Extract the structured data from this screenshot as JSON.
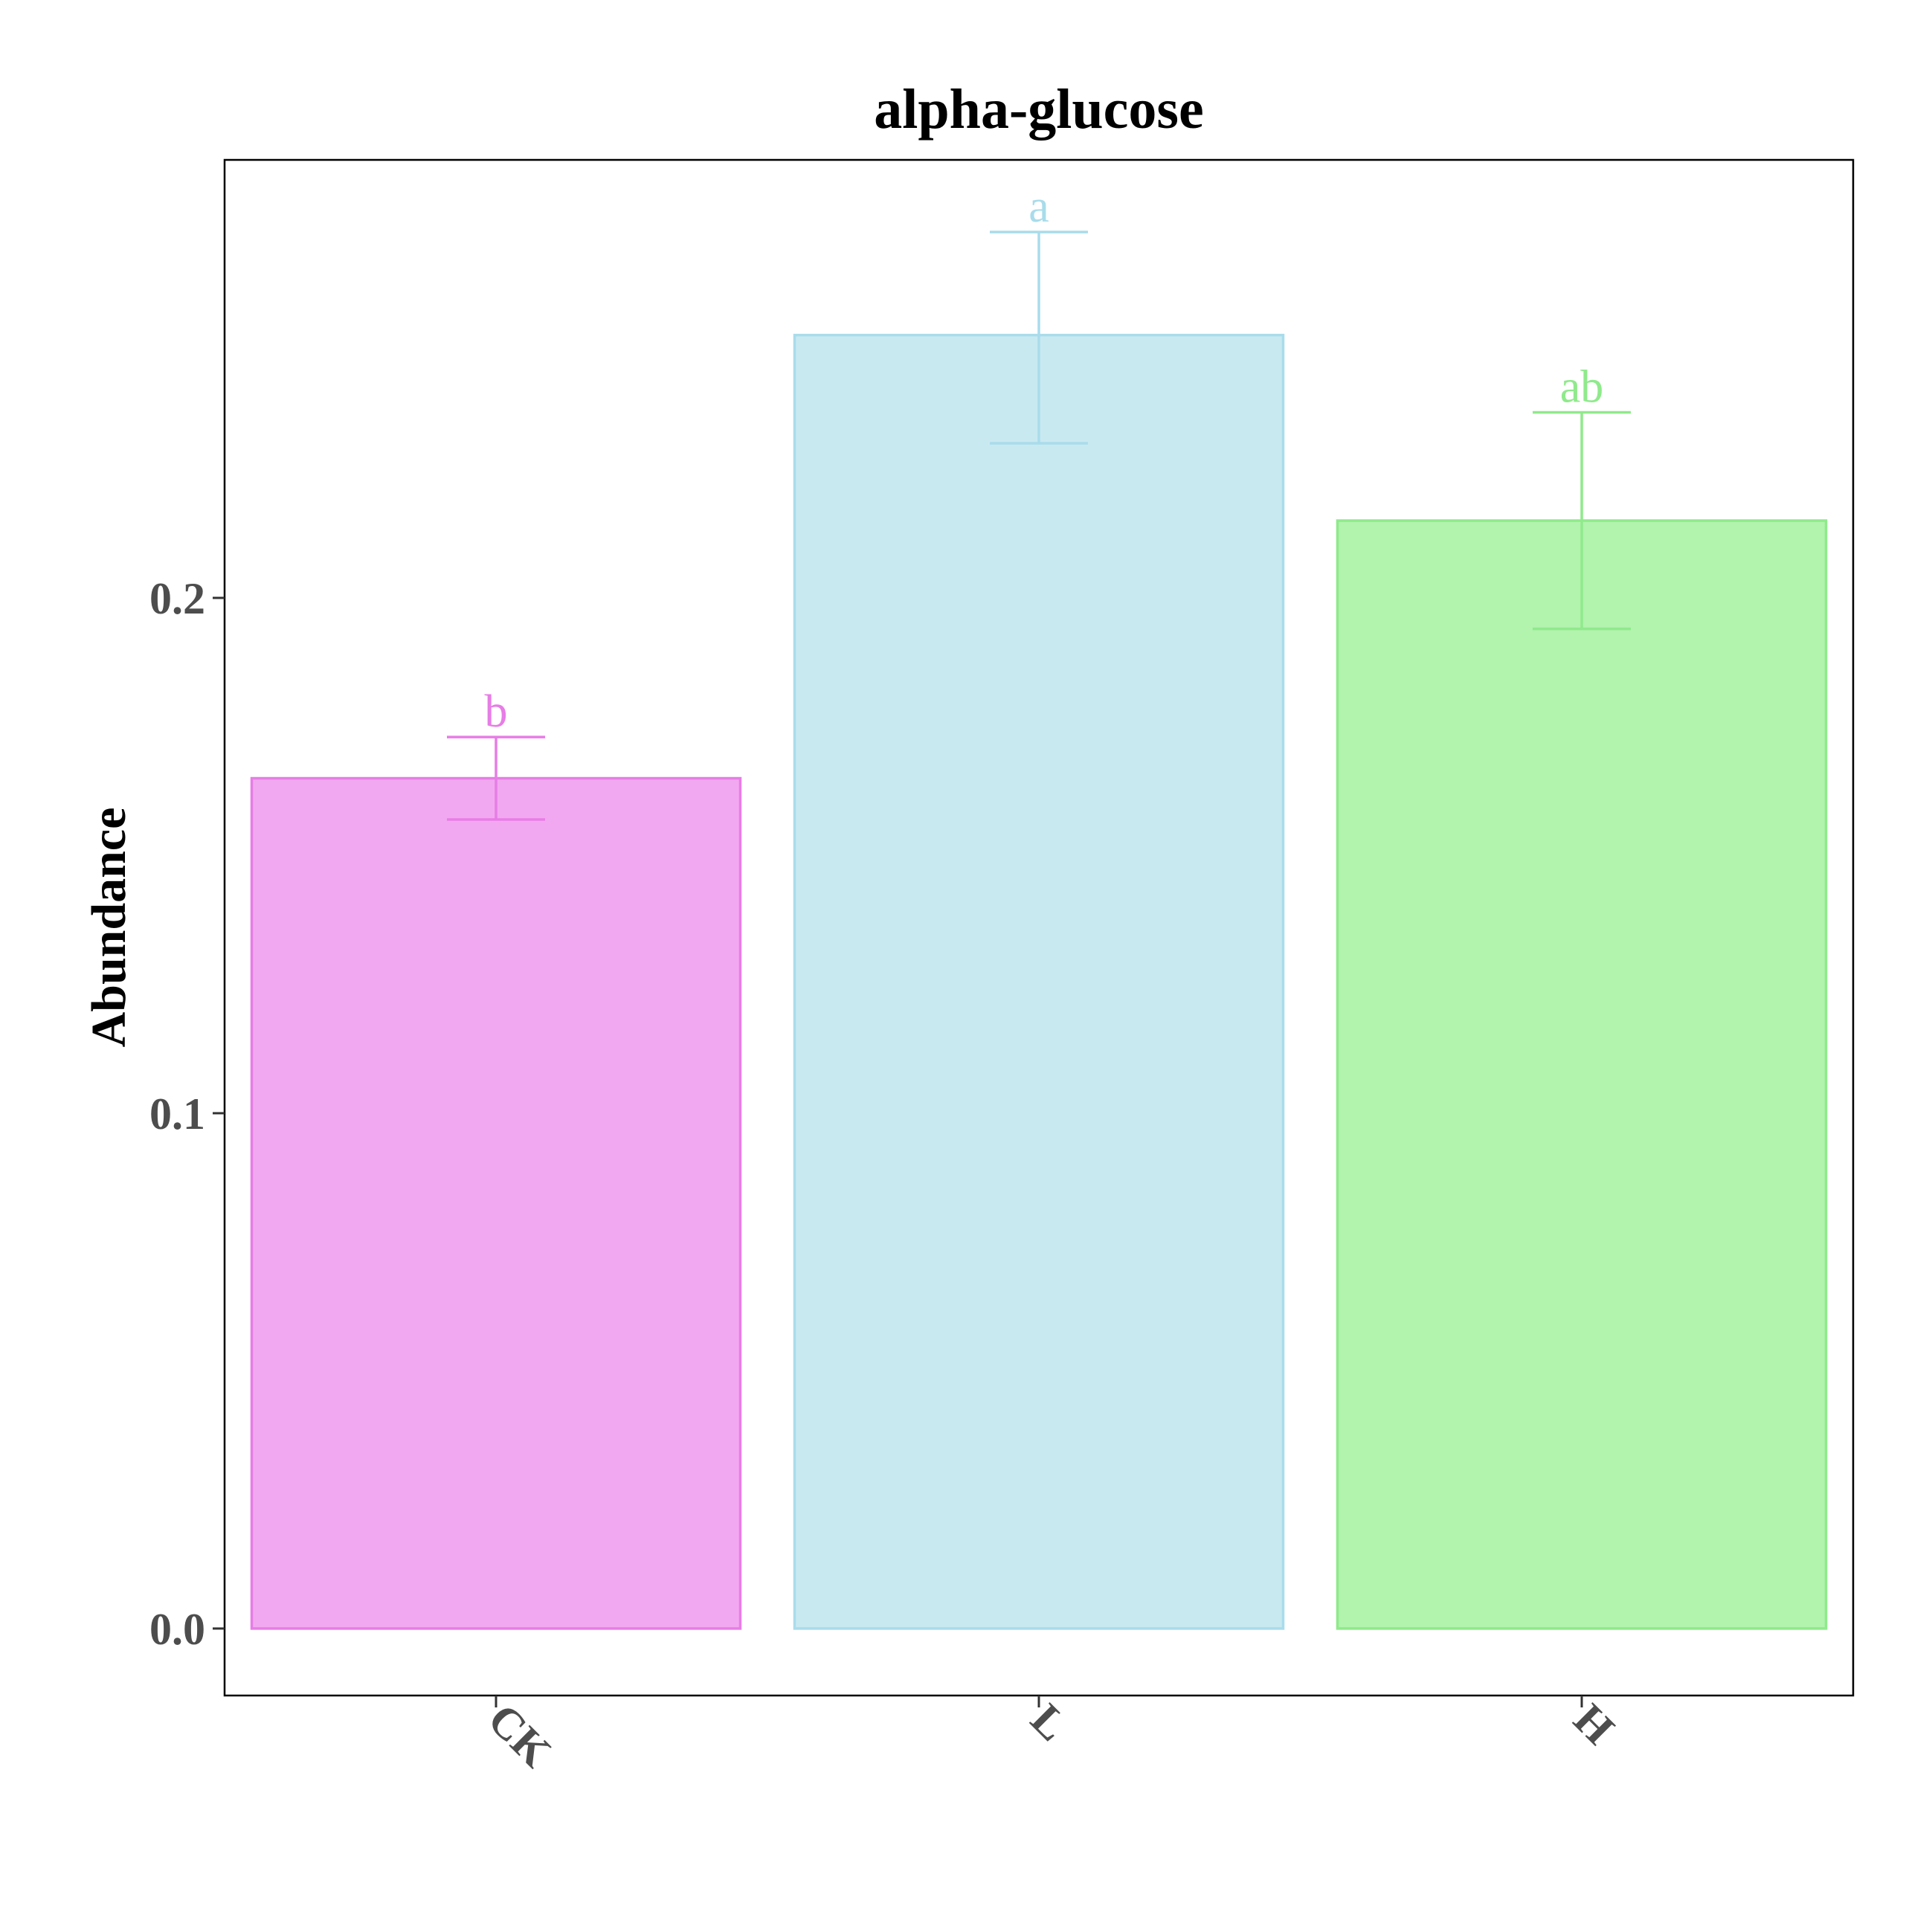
{
  "chart_data": {
    "type": "bar",
    "title": "alpha-glucose",
    "xlabel": "",
    "ylabel": "Abundance",
    "ylim": [
      -0.013,
      0.285
    ],
    "yticks": [
      {
        "value": 0.0,
        "label": "0.0"
      },
      {
        "value": 0.1,
        "label": "0.1"
      },
      {
        "value": 0.2,
        "label": "0.2"
      }
    ],
    "grid": false,
    "legend": "none",
    "categories": [
      "CK",
      "L",
      "H"
    ],
    "values": [
      0.165,
      0.251,
      0.215
    ],
    "error_low": [
      0.157,
      0.23,
      0.194
    ],
    "error_high": [
      0.173,
      0.271,
      0.236
    ],
    "significance": [
      "b",
      "a",
      "ab"
    ],
    "colors": {
      "fill": [
        "#f2a8f0",
        "#c9e9f1",
        "#b2f3ae"
      ],
      "stroke": [
        "#e77de6",
        "#a9dceb",
        "#8fea8b"
      ]
    }
  }
}
